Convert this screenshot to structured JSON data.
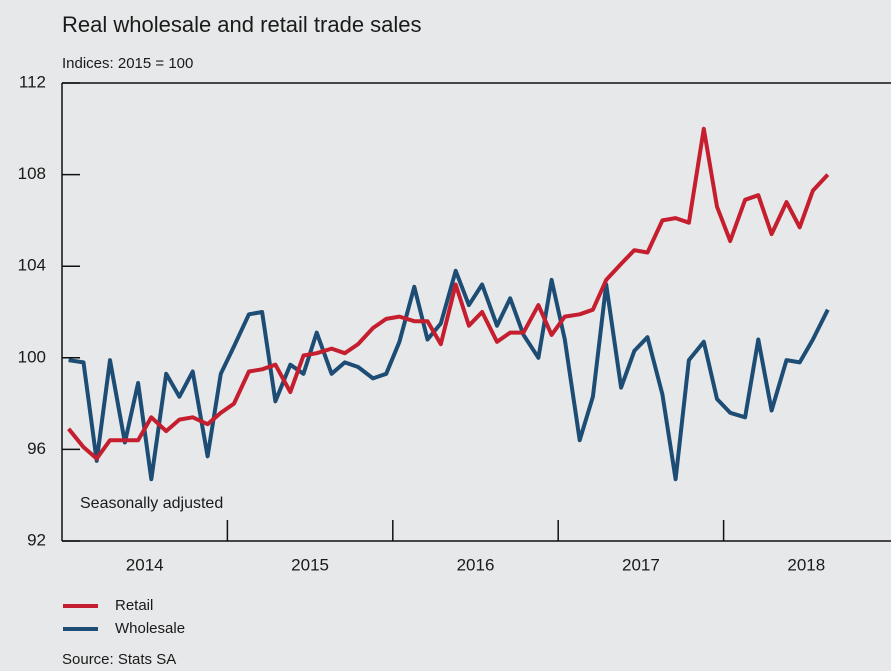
{
  "chart_data": {
    "type": "line",
    "title": "Real wholesale and retail trade sales",
    "subtitle": "Indices: 2015 = 100",
    "annotation": "Seasonally adjusted",
    "source": "Source: Stats SA",
    "x": [
      2014.04,
      2014.13,
      2014.21,
      2014.29,
      2014.38,
      2014.46,
      2014.54,
      2014.63,
      2014.71,
      2014.79,
      2014.88,
      2014.96,
      2015.04,
      2015.13,
      2015.21,
      2015.29,
      2015.38,
      2015.46,
      2015.54,
      2015.63,
      2015.71,
      2015.79,
      2015.88,
      2015.96,
      2016.04,
      2016.13,
      2016.21,
      2016.29,
      2016.38,
      2016.46,
      2016.54,
      2016.63,
      2016.71,
      2016.79,
      2016.88,
      2016.96,
      2017.04,
      2017.13,
      2017.21,
      2017.29,
      2017.38,
      2017.46,
      2017.54,
      2017.63,
      2017.71,
      2017.79,
      2017.88,
      2017.96,
      2018.04,
      2018.13,
      2018.21,
      2018.29,
      2018.38,
      2018.46,
      2018.54,
      2018.63
    ],
    "series": [
      {
        "name": "Retail",
        "color": "#c41e2f",
        "values": [
          96.9,
          96.1,
          95.6,
          96.4,
          96.4,
          96.4,
          97.4,
          96.8,
          97.3,
          97.4,
          97.1,
          97.6,
          98.0,
          99.4,
          99.5,
          99.7,
          98.5,
          100.1,
          100.2,
          100.4,
          100.2,
          100.6,
          101.3,
          101.7,
          101.8,
          101.6,
          101.6,
          100.6,
          103.2,
          101.4,
          102.0,
          100.7,
          101.1,
          101.1,
          102.3,
          101.0,
          101.8,
          101.9,
          102.1,
          103.4,
          104.1,
          104.7,
          104.6,
          106.0,
          106.1,
          105.9,
          110.0,
          106.6,
          105.1,
          106.9,
          107.1,
          105.4,
          106.8,
          105.7,
          107.3,
          108.0
        ]
      },
      {
        "name": "Wholesale",
        "color": "#1d4d75",
        "values": [
          99.9,
          99.8,
          95.5,
          99.9,
          96.3,
          98.9,
          94.7,
          99.3,
          98.3,
          99.4,
          95.7,
          99.3,
          100.5,
          101.9,
          102.0,
          98.1,
          99.7,
          99.3,
          101.1,
          99.3,
          99.8,
          99.6,
          99.1,
          99.3,
          100.7,
          103.1,
          100.8,
          101.5,
          103.8,
          102.3,
          103.2,
          101.4,
          102.6,
          101.0,
          100.0,
          103.4,
          100.8,
          96.4,
          98.3,
          103.2,
          98.7,
          100.3,
          100.9,
          98.4,
          94.7,
          99.9,
          100.7,
          98.2,
          97.6,
          97.4,
          100.8,
          97.7,
          99.9,
          99.8,
          100.8,
          102.1
        ]
      }
    ],
    "xlim": [
      2014,
      2019
    ],
    "xticks": [
      {
        "value": 2014.5,
        "label": "2014"
      },
      {
        "value": 2015.5,
        "label": "2015"
      },
      {
        "value": 2016.5,
        "label": "2016"
      },
      {
        "value": 2017.5,
        "label": "2017"
      },
      {
        "value": 2018.5,
        "label": "2018"
      }
    ],
    "x_boundaries": [
      2015,
      2016,
      2017,
      2018
    ],
    "ylim": [
      92,
      112
    ],
    "yticks": [
      92,
      96,
      100,
      104,
      108,
      112
    ],
    "legend": "bottom-left"
  }
}
